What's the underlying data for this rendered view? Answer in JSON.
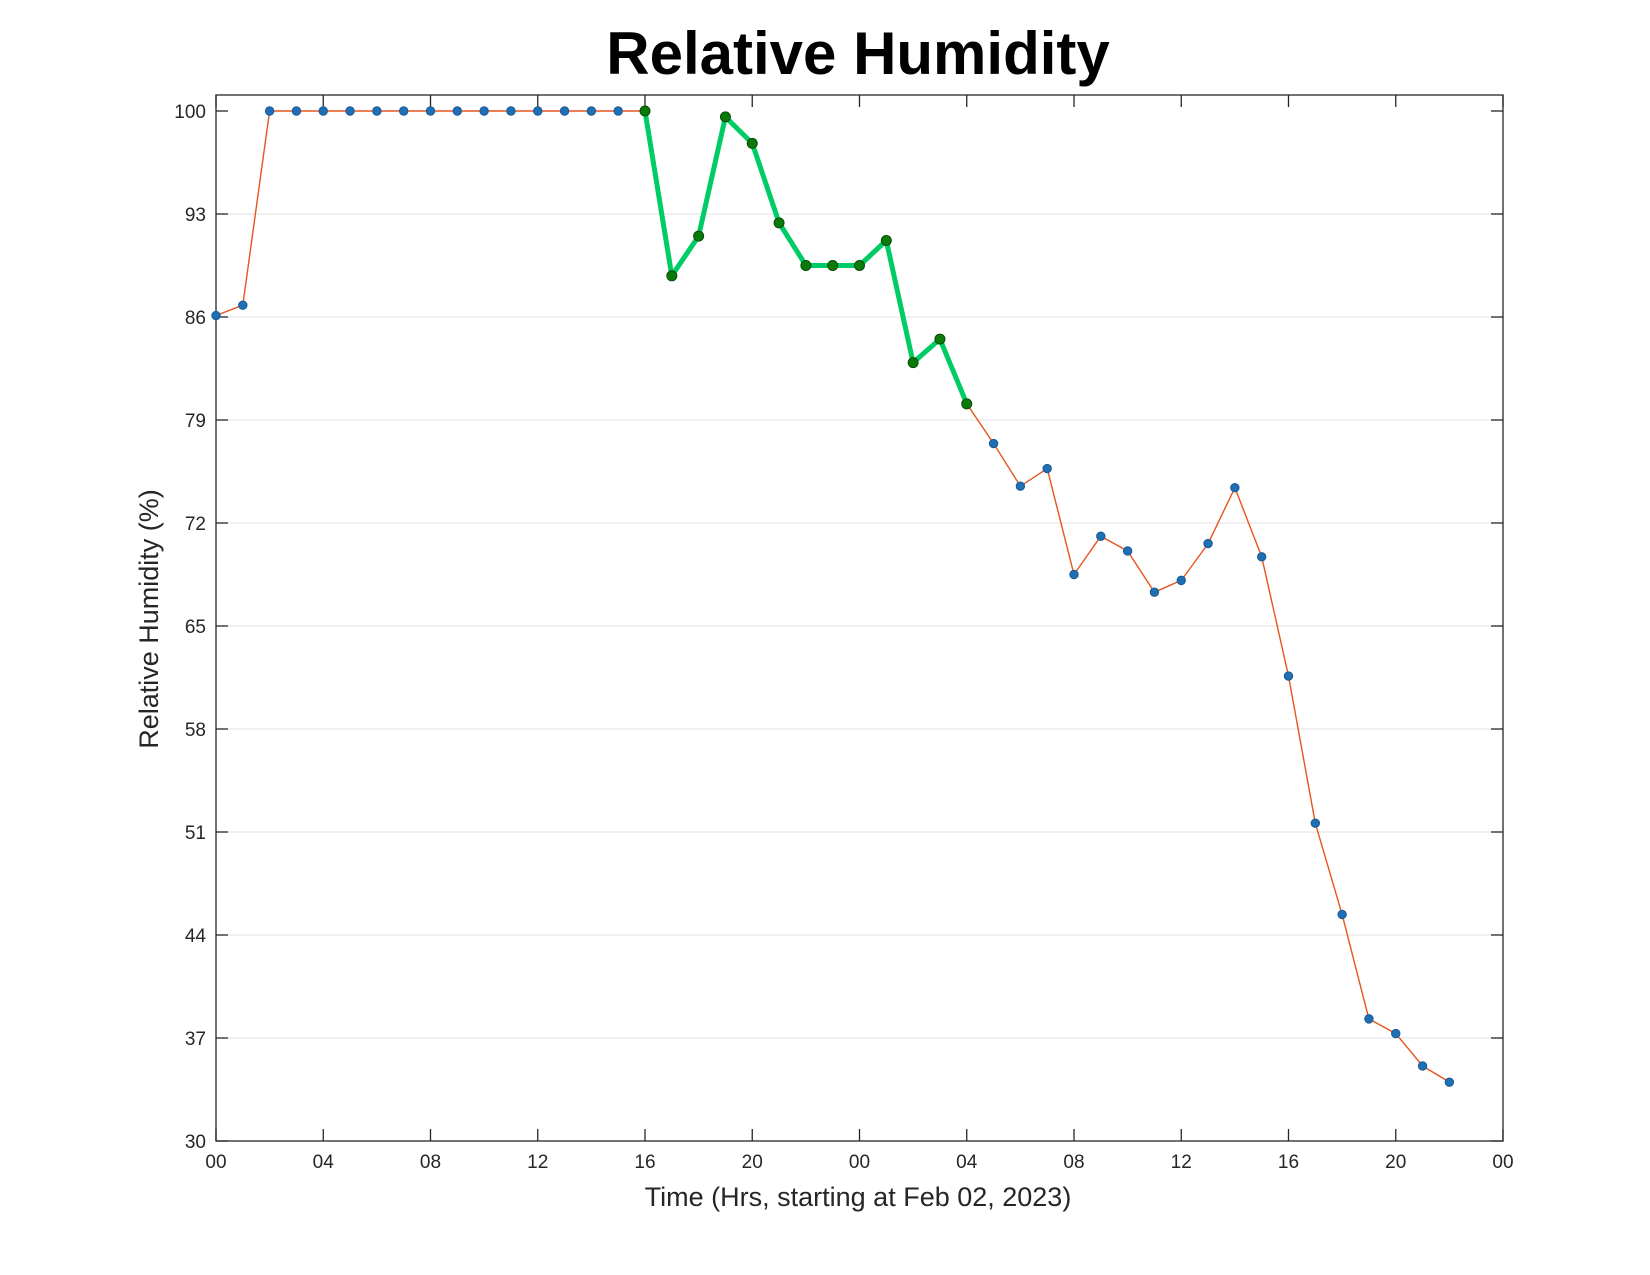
{
  "chart_data": {
    "type": "line",
    "title": "Relative Humidity",
    "xlabel": "Time (Hrs, starting at Feb 02, 2023)",
    "ylabel": "Relative Humidity (%)",
    "xlim": [
      0,
      48
    ],
    "ylim": [
      30,
      100
    ],
    "x_ticks": [
      0,
      4,
      8,
      12,
      16,
      20,
      24,
      28,
      32,
      36,
      40,
      44,
      48
    ],
    "x_tick_labels": [
      "00",
      "04",
      "08",
      "12",
      "16",
      "20",
      "00",
      "04",
      "08",
      "12",
      "16",
      "20",
      "00"
    ],
    "y_ticks": [
      30,
      37,
      44,
      51,
      58,
      65,
      72,
      79,
      86,
      93,
      100
    ],
    "y_tick_labels": [
      "30",
      "37",
      "44",
      "51",
      "58",
      "65",
      "72",
      "79",
      "86",
      "93",
      "100"
    ],
    "grid": "horizontal",
    "series": [
      {
        "color": "#e8541d",
        "marker_color": "#1f6fb4",
        "x": [
          0,
          1,
          2,
          3,
          4,
          5,
          6,
          7,
          8,
          9,
          10,
          11,
          12,
          13,
          14,
          15,
          16,
          17,
          18,
          19,
          20,
          21,
          22,
          23,
          24,
          25,
          26,
          27,
          28,
          29,
          30,
          31,
          32,
          33,
          34,
          35,
          36,
          37,
          38,
          39,
          40,
          41,
          42,
          43,
          44,
          45,
          46
        ],
        "values": [
          86.1,
          86.8,
          100,
          100,
          100,
          100,
          100,
          100,
          100,
          100,
          100,
          100,
          100,
          100,
          100,
          100,
          100,
          88.8,
          91.5,
          99.6,
          97.8,
          92.4,
          89.5,
          89.5,
          89.5,
          91.2,
          82.9,
          84.5,
          80.1,
          77.4,
          74.5,
          75.7,
          68.5,
          71.1,
          70.1,
          67.3,
          68.1,
          70.6,
          74.4,
          69.7,
          61.6,
          51.6,
          45.4,
          38.3,
          37.3,
          35.1,
          34.0
        ]
      },
      {
        "color": "#00cc66",
        "marker_color": "#0a7a0a",
        "x": [
          16,
          17,
          18,
          19,
          20,
          21,
          22,
          23,
          24,
          25,
          26,
          27,
          28
        ],
        "values": [
          100,
          88.8,
          91.5,
          99.6,
          97.8,
          92.4,
          89.5,
          89.5,
          89.5,
          91.2,
          82.9,
          84.5,
          80.1
        ]
      }
    ]
  }
}
